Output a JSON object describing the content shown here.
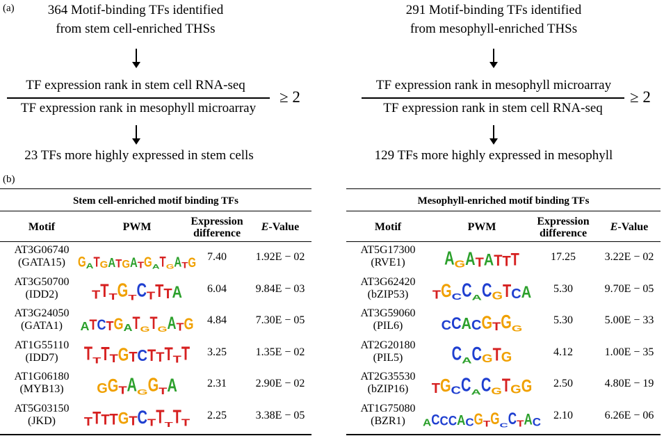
{
  "panel_a": {
    "label": "(a)",
    "left": {
      "title_line1": "364 Motif-binding TFs identified",
      "title_line2": "from stem cell-enriched THSs",
      "numerator": "TF expression rank in stem cell RNA-seq",
      "denominator": "TF expression rank in mesophyll microarray",
      "threshold": "≥ 2",
      "result": "23 TFs more highly expressed in stem cells"
    },
    "right": {
      "title_line1": "291 Motif-binding TFs identified",
      "title_line2": "from mesophyll-enriched THSs",
      "numerator": "TF expression rank in mesophyll microarray",
      "denominator": "TF expression rank in stem cell RNA-seq",
      "threshold": "≥ 2",
      "result": "129 TFs more highly expressed in mesophyll"
    }
  },
  "panel_b": {
    "label": "(b)",
    "headers": {
      "motif": "Motif",
      "pwm": "PWM",
      "expr_line1": "Expression",
      "expr_line2": "difference",
      "evalue_e": "E",
      "evalue_rest": "-Value"
    },
    "left_table": {
      "title": "Stem cell-enriched motif binding TFs",
      "rows": [
        {
          "id": "AT3G06740",
          "name": "(GATA15)",
          "pwm": "GATGATGATGATGATG",
          "expr": "7.40",
          "evalue": "1.92E − 02"
        },
        {
          "id": "AT3G50700",
          "name": "(IDD2)",
          "pwm": "TTTGTCTTTA",
          "expr": "6.04",
          "evalue": "9.84E − 03"
        },
        {
          "id": "AT3G24050",
          "name": "(GATA1)",
          "pwm": "ATCTGATGTGATG",
          "expr": "4.84",
          "evalue": "7.30E − 05"
        },
        {
          "id": "AT1G55110",
          "name": "(IDD7)",
          "pwm": "TTTTGTCTTTTT",
          "expr": "3.25",
          "evalue": "1.35E − 02"
        },
        {
          "id": "AT1G06180",
          "name": "(MYB13)",
          "pwm": "GGTAGGTA",
          "expr": "2.31",
          "evalue": "2.90E − 02"
        },
        {
          "id": "AT5G03150",
          "name": "(JKD)",
          "pwm": "TTTTGTCTTTTT",
          "expr": "2.25",
          "evalue": "3.38E − 05"
        }
      ]
    },
    "right_table": {
      "title": "Mesophyll-enriched motif binding TFs",
      "rows": [
        {
          "id": "AT5G17300",
          "name": "(RVE1)",
          "pwm": "AGATATTT",
          "expr": "17.25",
          "evalue": "3.22E − 02"
        },
        {
          "id": "AT3G62420",
          "name": "(bZIP53)",
          "pwm": "TGCCACGTCA",
          "expr": "5.30",
          "evalue": "9.70E − 05"
        },
        {
          "id": "AT3G59060",
          "name": "(PIL6)",
          "pwm": "CCACGTGG",
          "expr": "5.30",
          "evalue": "5.00E − 33"
        },
        {
          "id": "AT2G20180",
          "name": "(PIL5)",
          "pwm": "CACGTG",
          "expr": "4.12",
          "evalue": "1.00E − 35"
        },
        {
          "id": "AT2G35530",
          "name": "(bZIP16)",
          "pwm": "TGCCACGTGG",
          "expr": "2.50",
          "evalue": "4.80E − 19"
        },
        {
          "id": "AT1G75080",
          "name": "(BZR1)",
          "pwm": "ACCCACGTGCCTAC",
          "expr": "2.10",
          "evalue": "6.26E − 06"
        }
      ]
    }
  },
  "colors": {
    "A": "#2ca02c",
    "C": "#1f3fd0",
    "G": "#f0a000",
    "T": "#d62020"
  }
}
